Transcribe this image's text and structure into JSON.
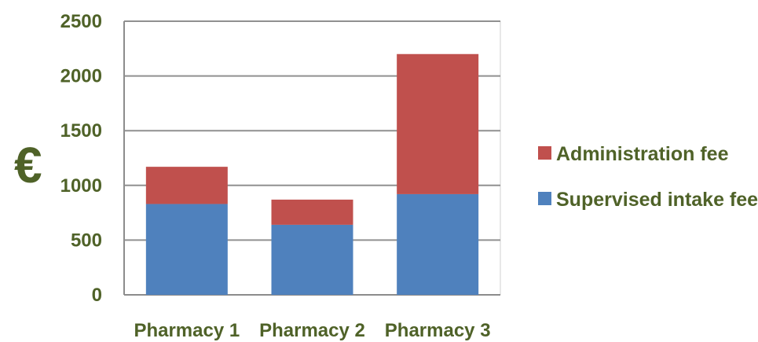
{
  "chart_data": {
    "type": "bar",
    "stacked": true,
    "categories": [
      "Pharmacy 1",
      "Pharmacy 2",
      "Pharmacy 3"
    ],
    "series": [
      {
        "name": "Supervised intake fee",
        "values": [
          830,
          640,
          920
        ],
        "color": "#4f81bd"
      },
      {
        "name": "Administration fee",
        "values": [
          340,
          230,
          1280
        ],
        "color": "#c0504d"
      }
    ],
    "ylabel": "€",
    "ylim": [
      0,
      2500
    ],
    "yticks": [
      0,
      500,
      1000,
      1500,
      2000,
      2500
    ],
    "grid": true,
    "legend_position": "right"
  }
}
